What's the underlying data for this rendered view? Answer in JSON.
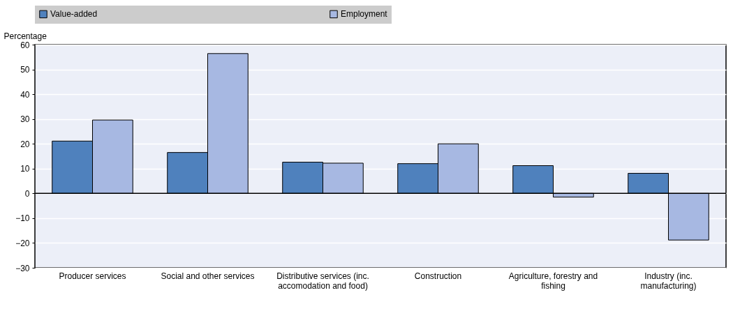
{
  "chart_data": {
    "type": "bar",
    "ylabel": "Percentage",
    "categories": [
      "Producer services",
      "Social and other services",
      "Distributive services (inc. accomodation and food)",
      "Construction",
      "Agriculture, forestry and fishing",
      "Industry (inc. manufacturing)"
    ],
    "series": [
      {
        "name": "Value-added",
        "color": "#4f81bd",
        "values": [
          21.1,
          16.5,
          12.6,
          12.0,
          11.2,
          8.1
        ]
      },
      {
        "name": "Employment",
        "color": "#a7b8e2",
        "values": [
          29.6,
          56.4,
          12.2,
          20.0,
          -1.5,
          -18.8
        ]
      }
    ],
    "ylim": [
      -30,
      60
    ],
    "yticks": [
      -30,
      -20,
      -10,
      0,
      10,
      20,
      30,
      40,
      50,
      60
    ],
    "grid": "y",
    "legend": "top"
  }
}
